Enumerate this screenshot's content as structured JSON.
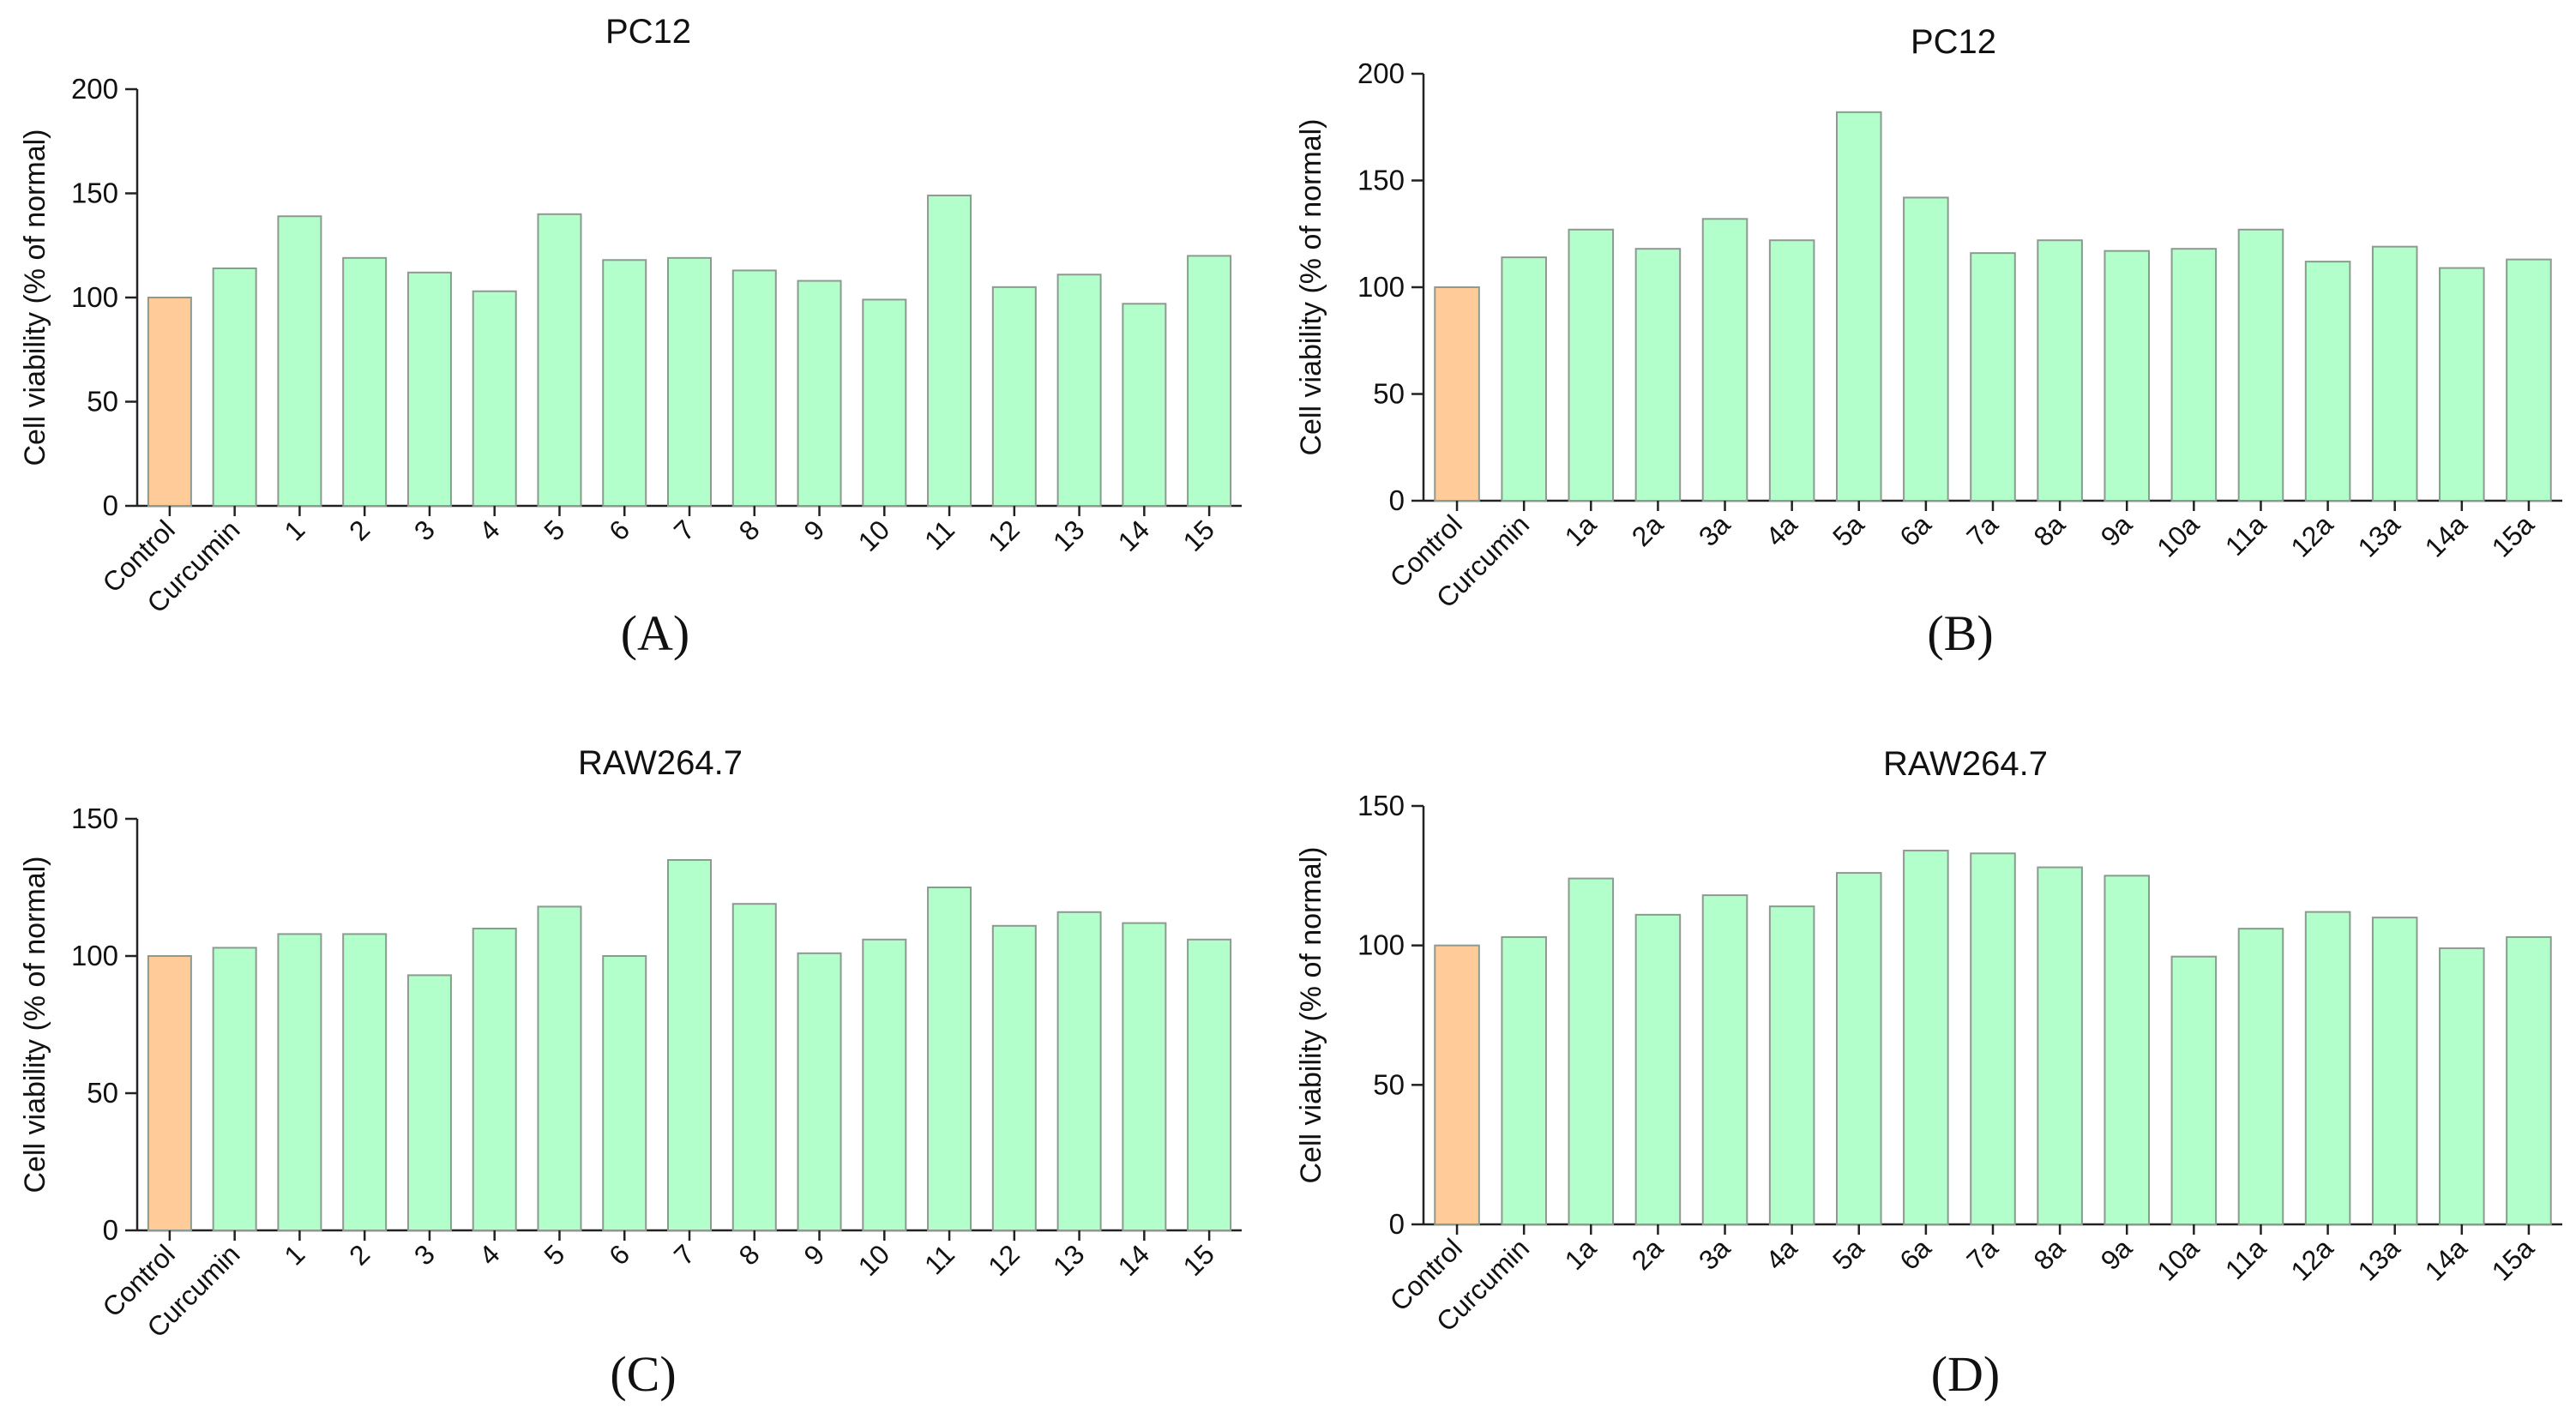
{
  "colors": {
    "control_bar": "#ffcc99",
    "compound_bar": "#b3ffcc",
    "bar_outline": "#8c9a8f",
    "axis": "#222222"
  },
  "chart_data": [
    {
      "type": "bar",
      "panel_label": "(A)",
      "title": "PC12",
      "xlabel": "",
      "ylabel": "Cell viability (% of normal)",
      "ylim": [
        0,
        200
      ],
      "yticks": [
        0,
        50,
        100,
        150,
        200
      ],
      "categories": [
        "Control",
        "Curcumin",
        "1",
        "2",
        "3",
        "4",
        "5",
        "6",
        "7",
        "8",
        "9",
        "10",
        "11",
        "12",
        "13",
        "14",
        "15"
      ],
      "values": [
        100,
        114,
        139,
        119,
        112,
        103,
        140,
        118,
        119,
        113,
        108,
        99,
        149,
        105,
        111,
        97,
        120
      ]
    },
    {
      "type": "bar",
      "panel_label": "(B)",
      "title": "PC12",
      "xlabel": "",
      "ylabel": "Cell viability (% of normal)",
      "ylim": [
        0,
        200
      ],
      "yticks": [
        0,
        50,
        100,
        150,
        200
      ],
      "categories": [
        "Control",
        "Curcumin",
        "1a",
        "2a",
        "3a",
        "4a",
        "5a",
        "6a",
        "7a",
        "8a",
        "9a",
        "10a",
        "11a",
        "12a",
        "13a",
        "14a",
        "15a"
      ],
      "values": [
        100,
        114,
        127,
        118,
        132,
        122,
        182,
        142,
        116,
        122,
        117,
        118,
        127,
        112,
        119,
        109,
        113
      ]
    },
    {
      "type": "bar",
      "panel_label": "(C)",
      "title": "RAW264.7",
      "xlabel": "",
      "ylabel": "Cell viability (% of normal)",
      "ylim": [
        0,
        150
      ],
      "yticks": [
        0,
        50,
        100,
        150
      ],
      "categories": [
        "Control",
        "Curcumin",
        "1",
        "2",
        "3",
        "4",
        "5",
        "6",
        "7",
        "8",
        "9",
        "10",
        "11",
        "12",
        "13",
        "14",
        "15"
      ],
      "values": [
        100,
        103,
        108,
        108,
        93,
        110,
        118,
        100,
        135,
        119,
        101,
        106,
        125,
        111,
        116,
        112,
        106
      ]
    },
    {
      "type": "bar",
      "panel_label": "(D)",
      "title": "RAW264.7",
      "xlabel": "",
      "ylabel": "Cell viability (% of normal)",
      "ylim": [
        0,
        150
      ],
      "yticks": [
        0,
        50,
        100,
        150
      ],
      "categories": [
        "Control",
        "Curcumin",
        "1a",
        "2a",
        "3a",
        "4a",
        "5a",
        "6a",
        "7a",
        "8a",
        "9a",
        "10a",
        "11a",
        "12a",
        "13a",
        "14a",
        "15a"
      ],
      "values": [
        100,
        103,
        124,
        111,
        118,
        114,
        126,
        134,
        133,
        128,
        125,
        96,
        106,
        112,
        110,
        99,
        103
      ]
    }
  ]
}
